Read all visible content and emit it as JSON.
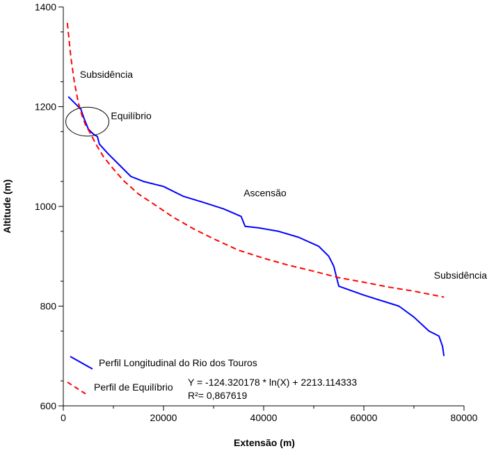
{
  "chart_data": {
    "type": "line",
    "xlabel": "Extensão (m)",
    "ylabel": "Altitude (m)",
    "xlim": [
      0,
      80000
    ],
    "ylim": [
      600,
      1400
    ],
    "x_ticks": [
      "0",
      "20000",
      "40000",
      "60000",
      "80000"
    ],
    "y_ticks": [
      "600",
      "800",
      "1000",
      "1200",
      "1400"
    ],
    "x_tick_values": [
      0,
      20000,
      40000,
      60000,
      80000
    ],
    "y_tick_values": [
      600,
      800,
      1000,
      1200,
      1400
    ],
    "grid": false,
    "legend_position": "bottom-left",
    "series": [
      {
        "name": "Perfil Longitudinal do Rio dos Touros",
        "color": "#0000ff",
        "dash": "solid",
        "points": [
          [
            1000,
            1220
          ],
          [
            2500,
            1205
          ],
          [
            3500,
            1195
          ],
          [
            4200,
            1175
          ],
          [
            5000,
            1155
          ],
          [
            6000,
            1145
          ],
          [
            6800,
            1140
          ],
          [
            7200,
            1125
          ],
          [
            9000,
            1105
          ],
          [
            11000,
            1085
          ],
          [
            13500,
            1060
          ],
          [
            16000,
            1050
          ],
          [
            20000,
            1040
          ],
          [
            24000,
            1020
          ],
          [
            28000,
            1008
          ],
          [
            32000,
            995
          ],
          [
            35500,
            980
          ],
          [
            36300,
            960
          ],
          [
            39000,
            957
          ],
          [
            43000,
            950
          ],
          [
            47000,
            938
          ],
          [
            51000,
            920
          ],
          [
            53000,
            900
          ],
          [
            54000,
            880
          ],
          [
            55000,
            840
          ],
          [
            60000,
            822
          ],
          [
            67000,
            800
          ],
          [
            70000,
            778
          ],
          [
            73000,
            750
          ],
          [
            75000,
            740
          ],
          [
            75700,
            720
          ],
          [
            76000,
            700
          ]
        ]
      },
      {
        "name": "Perfil de Equilíbrio",
        "color": "#ff0000",
        "dash": "dashed",
        "equation": "Y = -124.320178 * ln(X) + 2213.114333",
        "r2": "R²= 0,867619",
        "points": [
          [
            800,
            1368
          ],
          [
            1500,
            1300
          ],
          [
            2200,
            1250
          ],
          [
            3000,
            1208
          ],
          [
            3800,
            1180
          ],
          [
            4500,
            1162
          ],
          [
            5500,
            1145
          ],
          [
            6500,
            1125
          ],
          [
            8000,
            1100
          ],
          [
            10000,
            1075
          ],
          [
            12000,
            1052
          ],
          [
            15000,
            1025
          ],
          [
            18000,
            1005
          ],
          [
            22000,
            978
          ],
          [
            26000,
            955
          ],
          [
            30000,
            935
          ],
          [
            35000,
            912
          ],
          [
            40000,
            896
          ],
          [
            45000,
            882
          ],
          [
            50000,
            870
          ],
          [
            55000,
            857
          ],
          [
            60000,
            848
          ],
          [
            65000,
            838
          ],
          [
            70000,
            830
          ],
          [
            75000,
            820
          ],
          [
            76000,
            818
          ]
        ]
      }
    ],
    "annotations": [
      {
        "text": "Subsidência",
        "x": 3300,
        "y": 1258
      },
      {
        "text": "Equilíbrio",
        "x": 9500,
        "y": 1175
      },
      {
        "text": "Ascensão",
        "x": 36000,
        "y": 1020
      },
      {
        "text": "Subsidência",
        "x": 74000,
        "y": 855
      }
    ],
    "ellipse": {
      "cx": 4800,
      "cy": 1170,
      "rx": 4300,
      "ry": 29
    }
  }
}
